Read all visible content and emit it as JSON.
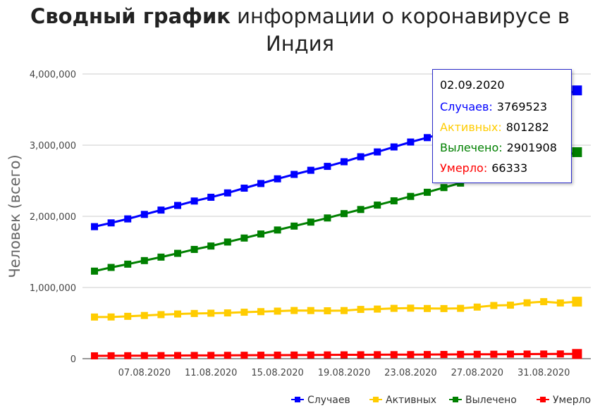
{
  "title": {
    "bold": "Сводный график",
    "rest": " информации о коронавирусе в Индия"
  },
  "chart_data": {
    "type": "line",
    "title": "Сводный график информации о коронавирусе в Индия",
    "ylabel": "Человек (всего)",
    "xlabel": "",
    "ylim": [
      0,
      4000000
    ],
    "y_ticks": [
      "0",
      "1,000,000",
      "2,000,000",
      "3,000,000",
      "4,000,000"
    ],
    "x_tick_labels": [
      "07.08.2020",
      "11.08.2020",
      "15.08.2020",
      "19.08.2020",
      "23.08.2020",
      "27.08.2020",
      "31.08.2020"
    ],
    "x": [
      "04.08.2020",
      "05.08.2020",
      "06.08.2020",
      "07.08.2020",
      "08.08.2020",
      "09.08.2020",
      "10.08.2020",
      "11.08.2020",
      "12.08.2020",
      "13.08.2020",
      "14.08.2020",
      "15.08.2020",
      "16.08.2020",
      "17.08.2020",
      "18.08.2020",
      "19.08.2020",
      "20.08.2020",
      "21.08.2020",
      "22.08.2020",
      "23.08.2020",
      "24.08.2020",
      "25.08.2020",
      "26.08.2020",
      "27.08.2020",
      "28.08.2020",
      "29.08.2020",
      "30.08.2020",
      "31.08.2020",
      "01.09.2020",
      "02.09.2020"
    ],
    "series": [
      {
        "name": "Случаев",
        "color": "#0000ff",
        "values": [
          1855000,
          1908000,
          1964000,
          2027000,
          2088000,
          2153000,
          2215000,
          2268000,
          2329000,
          2396000,
          2461000,
          2527000,
          2589000,
          2647000,
          2702000,
          2767000,
          2837000,
          2905000,
          2975000,
          3044000,
          3106000,
          3167000,
          3234000,
          3311000,
          3387000,
          3463000,
          3542000,
          3621000,
          3691000,
          3769523
        ]
      },
      {
        "name": "Активных",
        "color": "#ffcc00",
        "values": [
          585000,
          586000,
          595000,
          607000,
          619000,
          628000,
          635000,
          639000,
          643000,
          653000,
          661000,
          668000,
          677000,
          676000,
          673000,
          676000,
          692000,
          697000,
          707000,
          710000,
          705000,
          704000,
          707000,
          725000,
          747000,
          752000,
          785000,
          801000,
          783000,
          801282
        ]
      },
      {
        "name": "Вылечено",
        "color": "#008000",
        "values": [
          1230000,
          1282000,
          1328000,
          1378000,
          1427000,
          1480000,
          1535000,
          1583000,
          1639000,
          1695000,
          1752000,
          1808000,
          1863000,
          1919000,
          1977000,
          2038000,
          2096000,
          2158000,
          2218000,
          2280000,
          2338000,
          2404000,
          2467000,
          2523000,
          2583000,
          2648000,
          2713000,
          2774000,
          2839000,
          2901908
        ]
      },
      {
        "name": "Умерло",
        "color": "#ff0000",
        "values": [
          39700,
          40700,
          41600,
          42500,
          43400,
          44400,
          45300,
          46100,
          47000,
          48000,
          48900,
          49900,
          50900,
          51800,
          52800,
          53900,
          54800,
          55800,
          56700,
          57500,
          58400,
          59400,
          60500,
          61500,
          62500,
          63500,
          64600,
          65300,
          66300,
          66333
        ]
      }
    ],
    "legend_position": "bottom-right",
    "grid": true
  },
  "tooltip": {
    "date": "02.09.2020",
    "rows": [
      {
        "label": "Случаев:",
        "value": "3769523",
        "color": "#0000ff"
      },
      {
        "label": "Активных:",
        "value": "801282",
        "color": "#ffcc00"
      },
      {
        "label": "Вылечено:",
        "value": "2901908",
        "color": "#008000"
      },
      {
        "label": "Умерло:",
        "value": "66333",
        "color": "#ff0000"
      }
    ]
  }
}
